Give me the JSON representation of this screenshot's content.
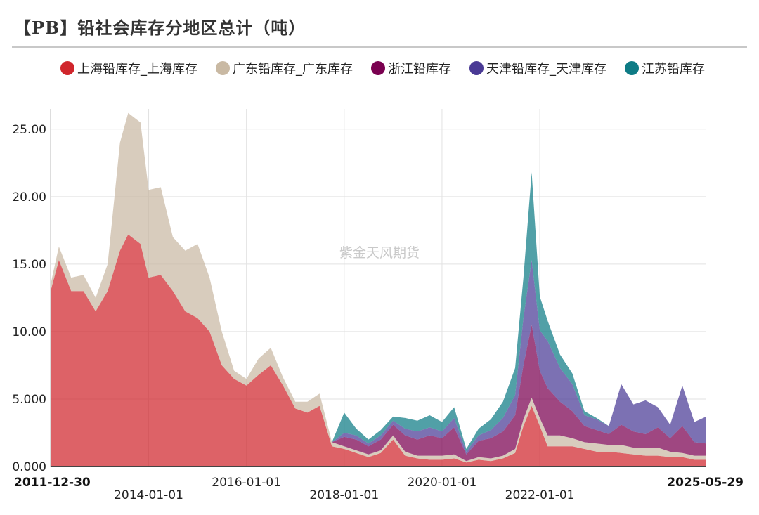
{
  "chart_data": {
    "type": "area",
    "stacked": true,
    "title": "【PB】铅社会库存分地区总计（吨）",
    "watermark": "紫金天风期货",
    "xlabel": "",
    "ylabel": "",
    "ylim": [
      0,
      26.5
    ],
    "yticks": [
      "0.000",
      "5.000",
      "10.00",
      "15.00",
      "20.00",
      "25.00"
    ],
    "yticks_values": [
      0,
      5,
      10,
      15,
      20,
      25
    ],
    "xticks": [
      "2011-12-30",
      "2014-01-01",
      "2016-01-01",
      "2018-01-01",
      "2020-01-01",
      "2022-01-01",
      "2025-05-29"
    ],
    "xlim": [
      "2011-12-30",
      "2025-05-29"
    ],
    "grid": true,
    "legend_position": "top-left",
    "x": [
      "2011-12-30",
      "2012-03-01",
      "2012-06-01",
      "2012-09-01",
      "2012-12-01",
      "2013-03-01",
      "2013-06-01",
      "2013-08-01",
      "2013-11-01",
      "2014-01-01",
      "2014-04-01",
      "2014-07-01",
      "2014-10-01",
      "2015-01-01",
      "2015-04-01",
      "2015-07-01",
      "2015-10-01",
      "2016-01-01",
      "2016-04-01",
      "2016-07-01",
      "2016-10-01",
      "2017-01-01",
      "2017-04-01",
      "2017-07-01",
      "2017-10-01",
      "2018-01-01",
      "2018-04-01",
      "2018-07-01",
      "2018-10-01",
      "2019-01-01",
      "2019-04-01",
      "2019-07-01",
      "2019-10-01",
      "2020-01-01",
      "2020-04-01",
      "2020-07-01",
      "2020-10-01",
      "2021-01-01",
      "2021-04-01",
      "2021-07-01",
      "2021-09-01",
      "2021-11-01",
      "2022-01-01",
      "2022-03-01",
      "2022-06-01",
      "2022-09-01",
      "2022-12-01",
      "2023-03-01",
      "2023-06-01",
      "2023-09-01",
      "2023-12-01",
      "2024-03-01",
      "2024-06-01",
      "2024-09-01",
      "2024-12-01",
      "2025-03-01",
      "2025-05-29"
    ],
    "series": [
      {
        "name": "上海铅库存_上海库存",
        "color": "#d0262c",
        "values": [
          13,
          15.3,
          13,
          13,
          11.5,
          13,
          16,
          17.2,
          16.5,
          14,
          14.2,
          13,
          11.5,
          11,
          10,
          7.5,
          6.5,
          6,
          6.8,
          7.5,
          6,
          4.3,
          4,
          4.5,
          1.5,
          1.3,
          1.0,
          0.7,
          1.0,
          2.0,
          0.8,
          0.6,
          0.5,
          0.5,
          0.6,
          0.3,
          0.5,
          0.4,
          0.6,
          1.0,
          3.0,
          4.5,
          3.0,
          1.5,
          1.5,
          1.5,
          1.3,
          1.1,
          1.1,
          1.0,
          0.9,
          0.8,
          0.8,
          0.7,
          0.7,
          0.5,
          0.5
        ]
      },
      {
        "name": "广东铅库存_广东库存",
        "color": "#c9b9a3",
        "values": [
          0.5,
          1,
          1,
          1.2,
          1,
          2,
          8,
          9,
          9,
          6.5,
          6.5,
          4,
          4.5,
          5.5,
          4,
          2.5,
          0.6,
          0.5,
          1.2,
          1.3,
          0.6,
          0.5,
          0.8,
          0.9,
          0.3,
          0.2,
          0.2,
          0.2,
          0.2,
          0.3,
          0.3,
          0.2,
          0.3,
          0.3,
          0.3,
          0.1,
          0.2,
          0.2,
          0.2,
          0.3,
          0.5,
          0.6,
          0.6,
          0.8,
          0.8,
          0.6,
          0.5,
          0.6,
          0.5,
          0.6,
          0.5,
          0.6,
          0.6,
          0.4,
          0.3,
          0.3,
          0.3
        ]
      },
      {
        "name": "浙江铅库存",
        "color": "#7a0050",
        "values": [
          0,
          0,
          0,
          0,
          0,
          0,
          0,
          0,
          0,
          0,
          0,
          0,
          0,
          0,
          0,
          0,
          0,
          0,
          0,
          0,
          0,
          0,
          0,
          0,
          0,
          0.7,
          0.8,
          0.6,
          0.8,
          0.8,
          1.2,
          1.2,
          1.5,
          1.3,
          2.0,
          0.5,
          1.2,
          1.5,
          1.8,
          2.5,
          4.0,
          5.4,
          3.5,
          3.5,
          2.5,
          2.0,
          1.2,
          1.0,
          0.8,
          1.5,
          1.2,
          1.0,
          1.5,
          1.0,
          2.0,
          1.0,
          0.9
        ]
      },
      {
        "name": "天津铅库存_天津库存",
        "color": "#4a3a95",
        "values": [
          0,
          0,
          0,
          0,
          0,
          0,
          0,
          0,
          0,
          0,
          0,
          0,
          0,
          0,
          0,
          0,
          0,
          0,
          0,
          0,
          0,
          0,
          0,
          0,
          0,
          0.3,
          0.3,
          0.2,
          0.3,
          0.3,
          0.5,
          0.6,
          0.6,
          0.5,
          0.7,
          0.2,
          0.4,
          0.6,
          1.0,
          1.5,
          3.5,
          4.8,
          3.0,
          3.5,
          2.5,
          2.0,
          0.8,
          0.8,
          0.6,
          3.0,
          2.0,
          2.5,
          1.5,
          1.0,
          3.0,
          1.5,
          2.0
        ]
      },
      {
        "name": "江苏铅库存",
        "color": "#0e7b85",
        "values": [
          0,
          0,
          0,
          0,
          0,
          0,
          0,
          0,
          0,
          0,
          0,
          0,
          0,
          0,
          0,
          0,
          0,
          0,
          0,
          0,
          0,
          0,
          0,
          0,
          0,
          1.5,
          0.5,
          0.3,
          0.4,
          0.3,
          0.8,
          0.8,
          0.9,
          0.7,
          0.8,
          0.2,
          0.5,
          0.8,
          1.2,
          2.0,
          3.0,
          6.5,
          2.5,
          1.5,
          1.0,
          0.8,
          0.3,
          0.1,
          0,
          0,
          0,
          0,
          0,
          0,
          0,
          0,
          0
        ]
      }
    ]
  }
}
